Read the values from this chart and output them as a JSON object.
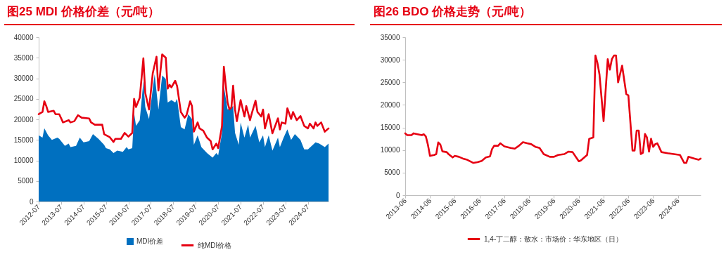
{
  "chart_data": [
    {
      "type": "area",
      "title": "图25  MDI 价格价差（元/吨）",
      "xlim": [
        "2012-07",
        "2025-06"
      ],
      "xticks": [
        "2012-07",
        "2013-07",
        "2014-07",
        "2015-07",
        "2016-07",
        "2017-07",
        "2018-07",
        "2019-07",
        "2020-07",
        "2021-07",
        "2022-07",
        "2023-07",
        "2024-07"
      ],
      "ylim": [
        0,
        40000
      ],
      "yticks": [
        0,
        5000,
        10000,
        15000,
        20000,
        25000,
        30000,
        35000,
        40000
      ],
      "legend": "bottom",
      "series": [
        {
          "name": "MDI价差",
          "color": "#0070c0",
          "x": [
            "2012-07",
            "2012-09",
            "2012-10",
            "2012-12",
            "2013-02",
            "2013-05",
            "2013-06",
            "2013-09",
            "2013-11",
            "2013-12",
            "2014-03",
            "2014-05",
            "2014-07",
            "2014-10",
            "2014-12",
            "2015-03",
            "2015-06",
            "2015-07",
            "2015-09",
            "2015-11",
            "2016-01",
            "2016-04",
            "2016-06",
            "2016-07",
            "2016-09",
            "2016-10",
            "2016-11",
            "2017-01",
            "2017-03",
            "2017-04",
            "2017-06",
            "2017-08",
            "2017-09",
            "2017-11",
            "2018-01",
            "2018-03",
            "2018-04",
            "2018-06",
            "2018-08",
            "2018-09",
            "2018-11",
            "2019-01",
            "2019-03",
            "2019-05",
            "2019-06",
            "2019-08",
            "2019-10",
            "2020-01",
            "2020-04",
            "2020-06",
            "2020-07",
            "2020-09",
            "2020-10",
            "2020-12",
            "2021-02",
            "2021-03",
            "2021-04",
            "2021-06",
            "2021-07",
            "2021-09",
            "2021-11",
            "2021-12",
            "2022-03",
            "2022-05",
            "2022-07",
            "2022-08",
            "2022-10",
            "2022-12",
            "2023-03",
            "2023-04",
            "2023-06",
            "2023-08",
            "2023-10",
            "2023-12",
            "2024-03",
            "2024-05",
            "2024-07",
            "2024-09",
            "2024-11",
            "2025-01",
            "2025-04",
            "2025-06"
          ],
          "values": [
            16100,
            15550,
            17800,
            16100,
            15000,
            15550,
            15250,
            13550,
            14100,
            13250,
            13550,
            15550,
            14400,
            14700,
            16400,
            15250,
            13800,
            13000,
            12700,
            11800,
            12400,
            12100,
            13250,
            12700,
            13000,
            21550,
            18400,
            19800,
            29250,
            23000,
            20100,
            27500,
            31000,
            22400,
            30700,
            29850,
            24100,
            24700,
            24100,
            25000,
            18100,
            17550,
            21250,
            20100,
            13800,
            16100,
            13250,
            11800,
            10700,
            11800,
            11250,
            16700,
            28100,
            22400,
            22900,
            23250,
            16700,
            13800,
            19250,
            15550,
            18700,
            15550,
            18400,
            14400,
            16100,
            13250,
            16100,
            12400,
            15550,
            13250,
            15550,
            17550,
            15000,
            16400,
            15000,
            12700,
            12700,
            13550,
            14400,
            14100,
            13250,
            14100
          ]
        },
        {
          "name": "纯MDI价格",
          "type": "line",
          "color": "#e60012",
          "x": [
            "2012-07",
            "2012-09",
            "2012-10",
            "2012-11",
            "2012-12",
            "2013-03",
            "2013-04",
            "2013-06",
            "2013-08",
            "2013-11",
            "2013-12",
            "2014-02",
            "2014-04",
            "2014-06",
            "2014-10",
            "2014-11",
            "2015-01",
            "2015-05",
            "2015-06",
            "2015-09",
            "2015-11",
            "2015-12",
            "2016-03",
            "2016-05",
            "2016-07",
            "2016-09",
            "2016-10",
            "2016-11",
            "2017-01",
            "2017-03",
            "2017-04",
            "2017-06",
            "2017-08",
            "2017-10",
            "2017-11",
            "2018-01",
            "2018-03",
            "2018-04",
            "2018-05",
            "2018-06",
            "2018-08",
            "2018-09",
            "2018-11",
            "2019-01",
            "2019-02",
            "2019-04",
            "2019-05",
            "2019-06",
            "2019-08",
            "2019-09",
            "2019-11",
            "2020-01",
            "2020-03",
            "2020-04",
            "2020-06",
            "2020-07",
            "2020-09",
            "2020-10",
            "2020-12",
            "2021-01",
            "2021-02",
            "2021-03",
            "2021-04",
            "2021-05",
            "2021-07",
            "2021-09",
            "2021-10",
            "2021-12",
            "2022-01",
            "2022-03",
            "2022-04",
            "2022-06",
            "2022-07",
            "2022-08",
            "2022-10",
            "2022-12",
            "2023-03",
            "2023-04",
            "2023-05",
            "2023-07",
            "2023-08",
            "2023-10",
            "2023-11",
            "2024-01",
            "2024-03",
            "2024-05",
            "2024-07",
            "2024-08",
            "2024-10",
            "2024-11",
            "2024-12",
            "2025-02",
            "2025-04",
            "2025-06"
          ],
          "values": [
            21250,
            21800,
            24400,
            23250,
            21800,
            22100,
            21250,
            21250,
            19250,
            19800,
            19250,
            19550,
            21000,
            20400,
            20200,
            19250,
            18700,
            18700,
            16400,
            15650,
            14500,
            15250,
            15250,
            16700,
            15800,
            16700,
            25000,
            23000,
            25250,
            34850,
            26400,
            22400,
            31250,
            35250,
            27000,
            35800,
            35000,
            27500,
            28400,
            27800,
            29400,
            28100,
            21800,
            20400,
            21000,
            24400,
            23250,
            17000,
            19250,
            17800,
            17250,
            15550,
            14700,
            12700,
            14100,
            13000,
            18400,
            32800,
            24100,
            22400,
            22900,
            28200,
            22400,
            19550,
            24700,
            20700,
            23250,
            19800,
            21550,
            24550,
            21800,
            20700,
            22400,
            17800,
            21250,
            16600,
            20250,
            17550,
            19250,
            18950,
            22700,
            20100,
            21800,
            19800,
            20800,
            18400,
            17800,
            18950,
            17800,
            19250,
            18400,
            19250,
            17000,
            17800
          ]
        }
      ]
    },
    {
      "type": "line",
      "title": "图26  BDO 价格走势（元/吨）",
      "xlim": [
        "2013-06",
        "2025-05"
      ],
      "xticks": [
        "2013-06",
        "2014-06",
        "2015-06",
        "2016-06",
        "2017-06",
        "2018-06",
        "2019-06",
        "2020-06",
        "2021-06",
        "2022-06",
        "2023-06",
        "2024-06"
      ],
      "ylim": [
        0,
        35000
      ],
      "yticks": [
        0,
        5000,
        10000,
        15000,
        20000,
        25000,
        30000,
        35000
      ],
      "legend": "bottom",
      "series": [
        {
          "name": "1,4-丁二醇：散水：市场价：华东地区（日）",
          "color": "#e60012",
          "x": [
            "2013-06",
            "2013-07",
            "2013-09",
            "2013-10",
            "2013-12",
            "2014-02",
            "2014-03",
            "2014-04",
            "2014-05",
            "2014-06",
            "2014-08",
            "2014-09",
            "2014-10",
            "2014-11",
            "2014-12",
            "2015-02",
            "2015-03",
            "2015-05",
            "2015-06",
            "2015-08",
            "2015-10",
            "2015-12",
            "2016-03",
            "2016-05",
            "2016-07",
            "2016-09",
            "2016-11",
            "2016-12",
            "2017-01",
            "2017-03",
            "2017-04",
            "2017-06",
            "2017-09",
            "2017-11",
            "2018-01",
            "2018-03",
            "2018-05",
            "2018-07",
            "2018-09",
            "2018-11",
            "2019-01",
            "2019-04",
            "2019-06",
            "2019-08",
            "2019-11",
            "2020-01",
            "2020-03",
            "2020-06",
            "2020-07",
            "2020-10",
            "2020-11",
            "2021-01",
            "2021-02",
            "2021-03",
            "2021-04",
            "2021-06",
            "2021-08",
            "2021-09",
            "2021-10",
            "2021-11",
            "2021-12",
            "2022-01",
            "2022-03",
            "2022-05",
            "2022-06",
            "2022-08",
            "2022-09",
            "2022-10",
            "2022-11",
            "2022-12",
            "2023-01",
            "2023-02",
            "2023-03",
            "2023-04",
            "2023-05",
            "2023-06",
            "2023-07",
            "2023-08",
            "2023-10",
            "2024-01",
            "2024-04",
            "2024-07",
            "2024-09",
            "2024-10",
            "2024-11",
            "2025-02",
            "2025-04",
            "2025-05"
          ],
          "values": [
            13700,
            13300,
            13300,
            13700,
            13500,
            13300,
            13500,
            13000,
            11200,
            8700,
            8900,
            9100,
            11700,
            11200,
            9700,
            9550,
            9100,
            8350,
            8700,
            8500,
            8100,
            7850,
            7150,
            7300,
            7600,
            8350,
            8600,
            10200,
            10950,
            10950,
            11500,
            10800,
            10450,
            10300,
            10950,
            11750,
            11500,
            11300,
            10700,
            10450,
            9100,
            8500,
            8500,
            8900,
            9100,
            9650,
            9550,
            7500,
            7700,
            8900,
            12500,
            12800,
            30950,
            29400,
            26800,
            16400,
            30150,
            27800,
            30150,
            30950,
            30950,
            25000,
            28700,
            22400,
            22100,
            9900,
            9900,
            14300,
            14300,
            9100,
            9400,
            13550,
            12800,
            9650,
            12500,
            10700,
            11300,
            11500,
            9550,
            9300,
            9100,
            8900,
            7150,
            7150,
            8500,
            8100,
            7850,
            8100
          ]
        }
      ]
    }
  ]
}
